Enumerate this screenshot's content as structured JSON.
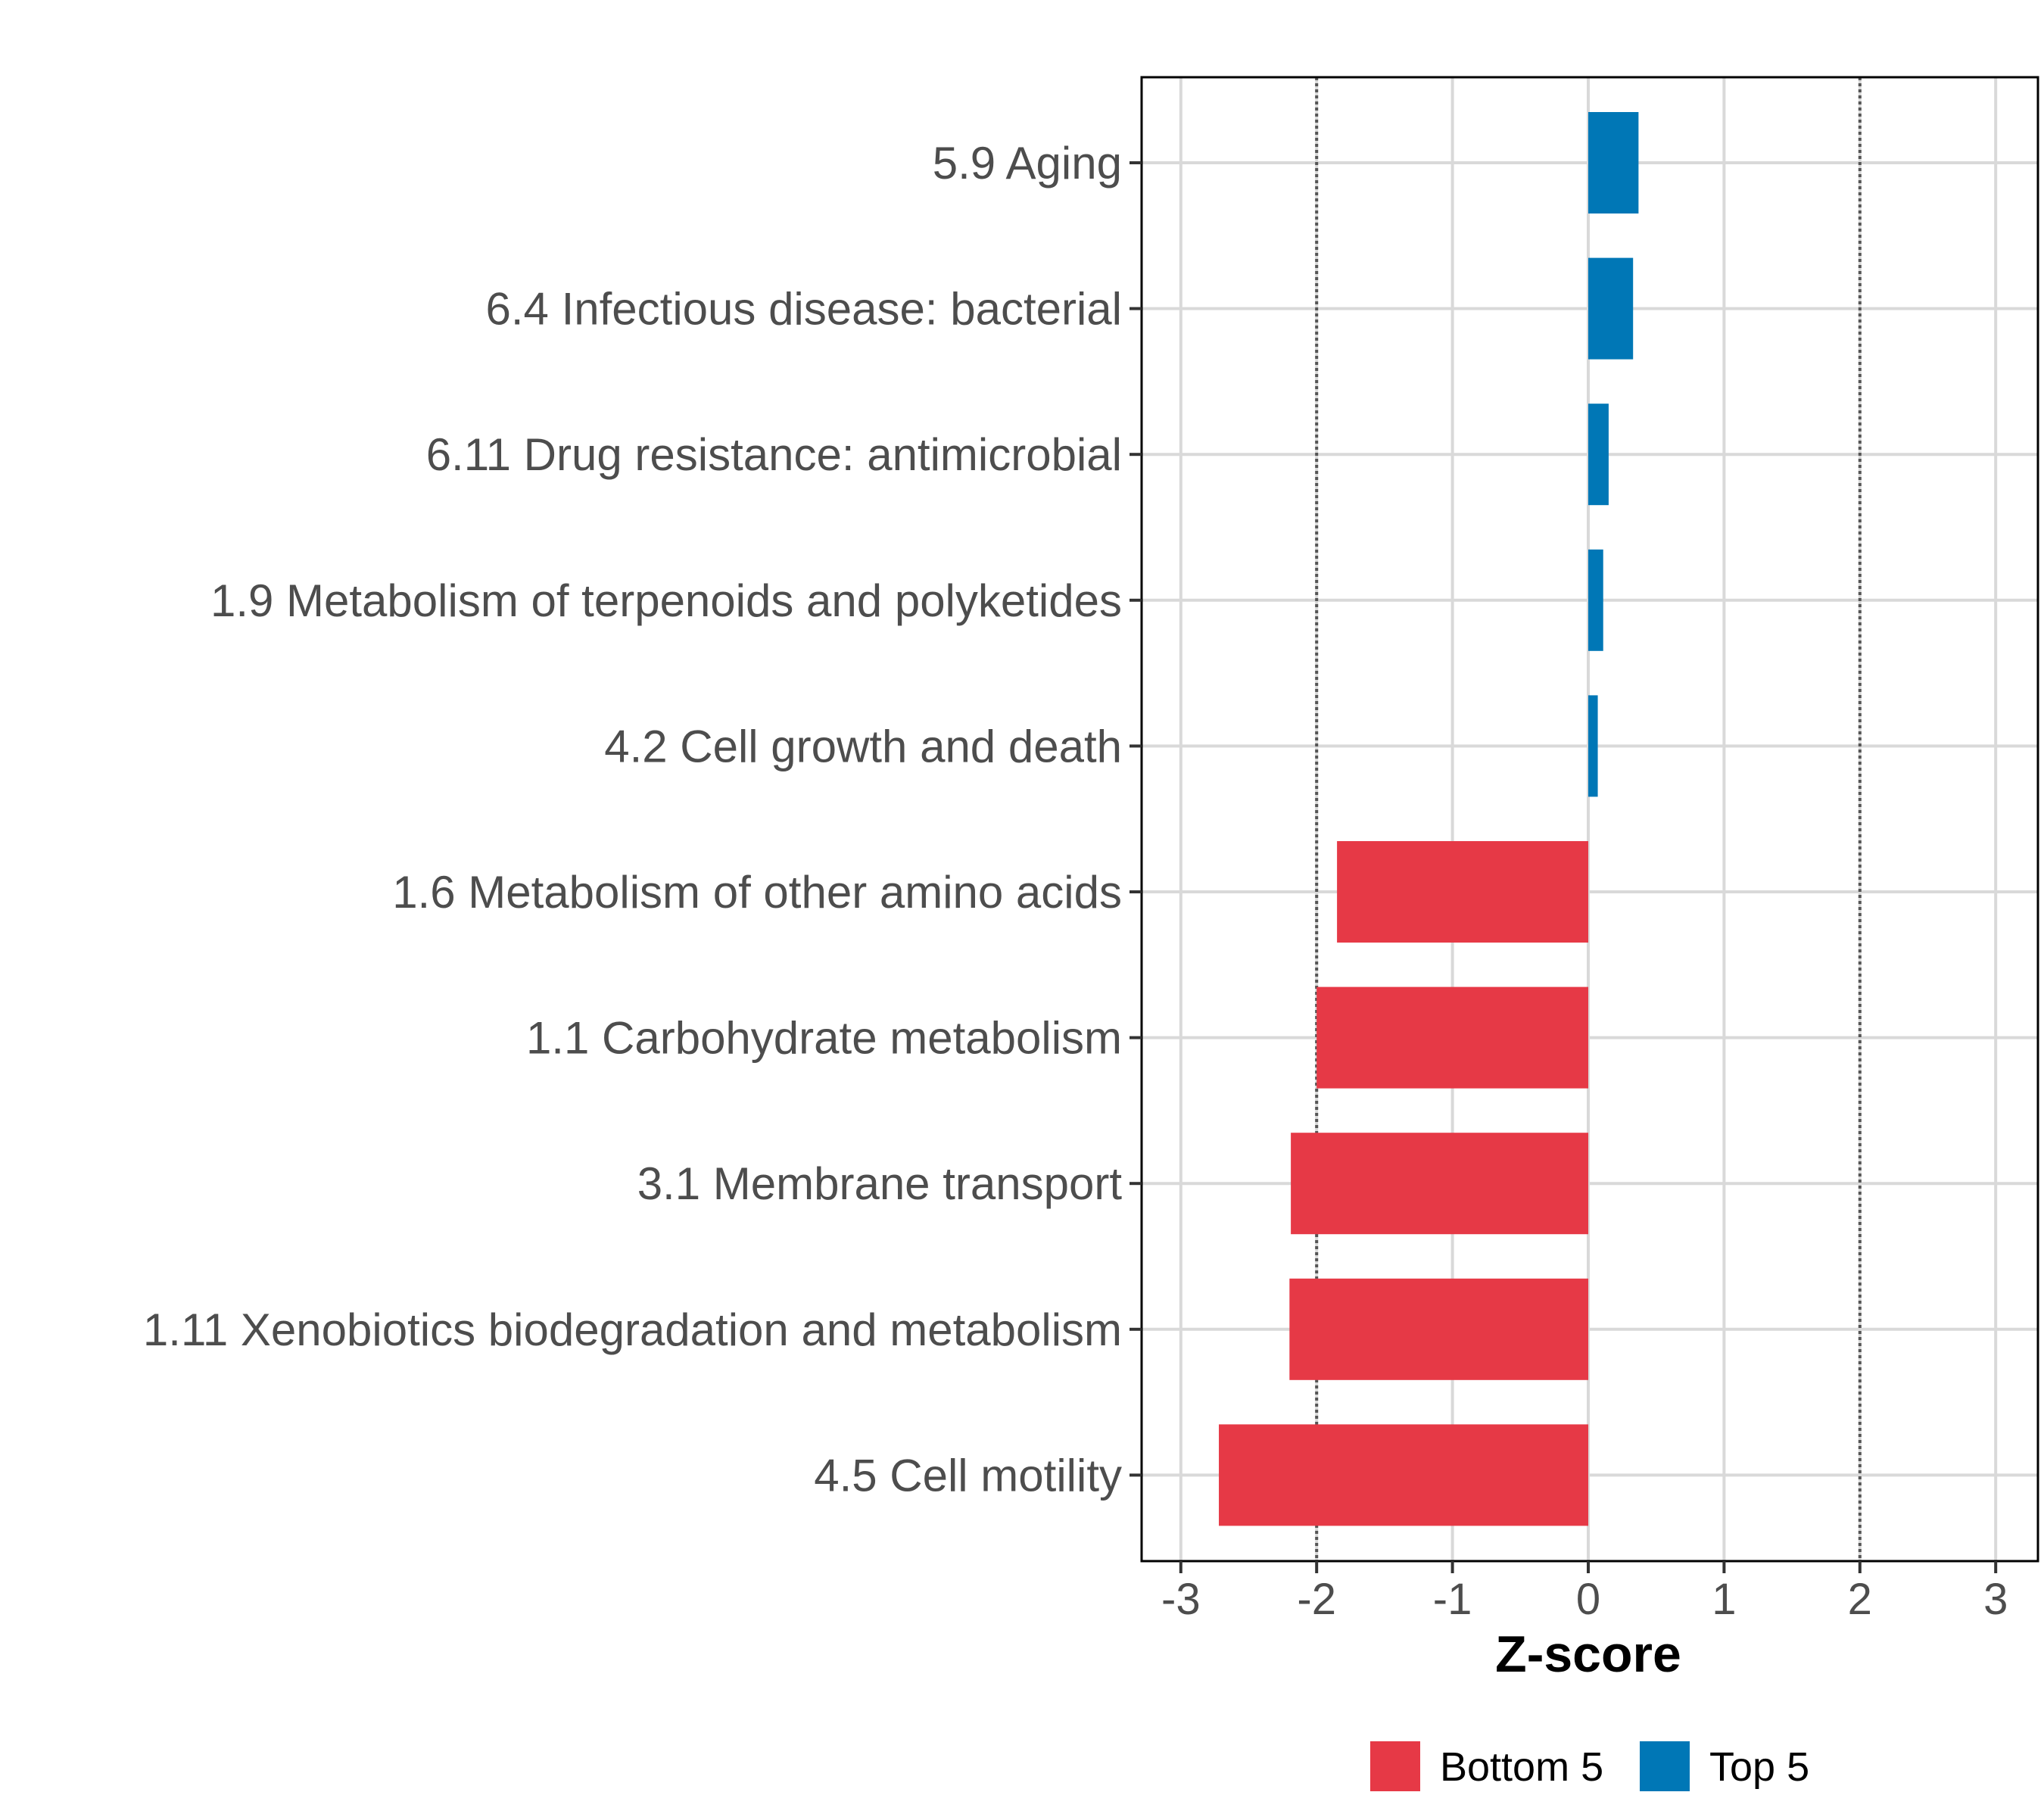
{
  "chart_data": {
    "type": "bar",
    "orientation": "horizontal",
    "categories": [
      "5.9 Aging",
      "6.4 Infectious disease: bacterial",
      "6.11 Drug resistance: antimicrobial",
      "1.9 Metabolism of terpenoids and polyketides",
      "4.2 Cell growth and death",
      "1.6 Metabolism of other amino acids",
      "1.1 Carbohydrate metabolism",
      "3.1 Membrane transport",
      "1.11 Xenobiotics biodegradation and metabolism",
      "4.5 Cell motility"
    ],
    "values": [
      0.37,
      0.33,
      0.15,
      0.11,
      0.07,
      -1.85,
      -2.0,
      -2.19,
      -2.2,
      -2.72
    ],
    "groups": [
      "Top 5",
      "Top 5",
      "Top 5",
      "Top 5",
      "Top 5",
      "Bottom 5",
      "Bottom 5",
      "Bottom 5",
      "Bottom 5",
      "Bottom 5"
    ],
    "xlabel": "Z-score",
    "ylabel": "",
    "xlim": [
      -3.3,
      3.3
    ],
    "xticks": [
      -3,
      -2,
      -1,
      0,
      1,
      2,
      3
    ],
    "xtick_labels": [
      "-3",
      "-2",
      "-1",
      "0",
      "1",
      "2",
      "3"
    ],
    "reference_lines": [
      -2,
      2
    ],
    "grid": true,
    "legend": {
      "position": "bottom",
      "entries": [
        {
          "label": "Bottom 5",
          "color": "#E63946"
        },
        {
          "label": "Top 5",
          "color": "#0077B6"
        }
      ]
    },
    "colors": {
      "Bottom 5": "#E63946",
      "Top 5": "#0077B6"
    }
  }
}
